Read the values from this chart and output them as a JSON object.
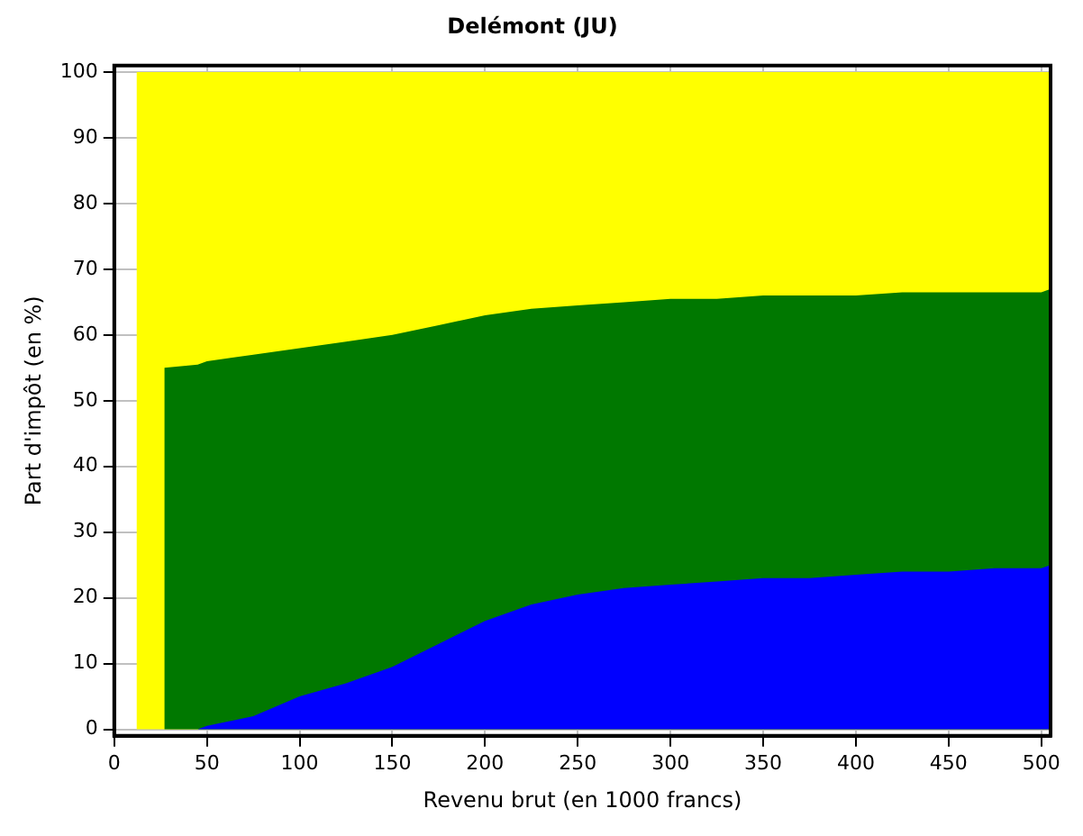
{
  "chart_data": {
    "type": "area",
    "title": "Delémont (JU)",
    "xlabel": "Revenu brut (en 1000 francs)",
    "ylabel": "Part d'impôt (en %)",
    "stacked": true,
    "x": [
      12,
      27,
      45,
      50,
      75,
      100,
      125,
      150,
      175,
      200,
      225,
      250,
      275,
      300,
      325,
      350,
      375,
      400,
      425,
      450,
      475,
      500,
      505
    ],
    "series": [
      {
        "color": "#0000ff",
        "values": [
          null,
          null,
          0,
          0.5,
          2,
          5,
          7,
          9.5,
          13,
          16.5,
          19,
          20.5,
          21.5,
          22,
          22.5,
          23,
          23,
          23.5,
          24,
          24,
          24.5,
          24.5,
          25
        ]
      },
      {
        "color": "#007800",
        "values": [
          null,
          55,
          55.5,
          55.5,
          55,
          53,
          52,
          50.5,
          48.5,
          46.5,
          45,
          44,
          43.5,
          43.5,
          43,
          43,
          43,
          42.5,
          42.5,
          42.5,
          42,
          42,
          42
        ]
      },
      {
        "color": "#ffff00",
        "values": [
          100,
          45,
          44.5,
          44,
          43,
          42,
          41,
          40,
          38.5,
          37,
          36,
          35.5,
          35,
          34.5,
          34.5,
          34,
          34,
          34,
          33.5,
          33.5,
          33.5,
          33.5,
          33
        ]
      }
    ],
    "xlim": [
      0,
      505
    ],
    "xticks": [
      0,
      50,
      100,
      150,
      200,
      250,
      300,
      350,
      400,
      450,
      500
    ],
    "ylim": [
      -1,
      101
    ],
    "yticks": [
      0,
      10,
      20,
      30,
      40,
      50,
      60,
      70,
      80,
      90,
      100
    ],
    "grid": true,
    "legend": false
  }
}
